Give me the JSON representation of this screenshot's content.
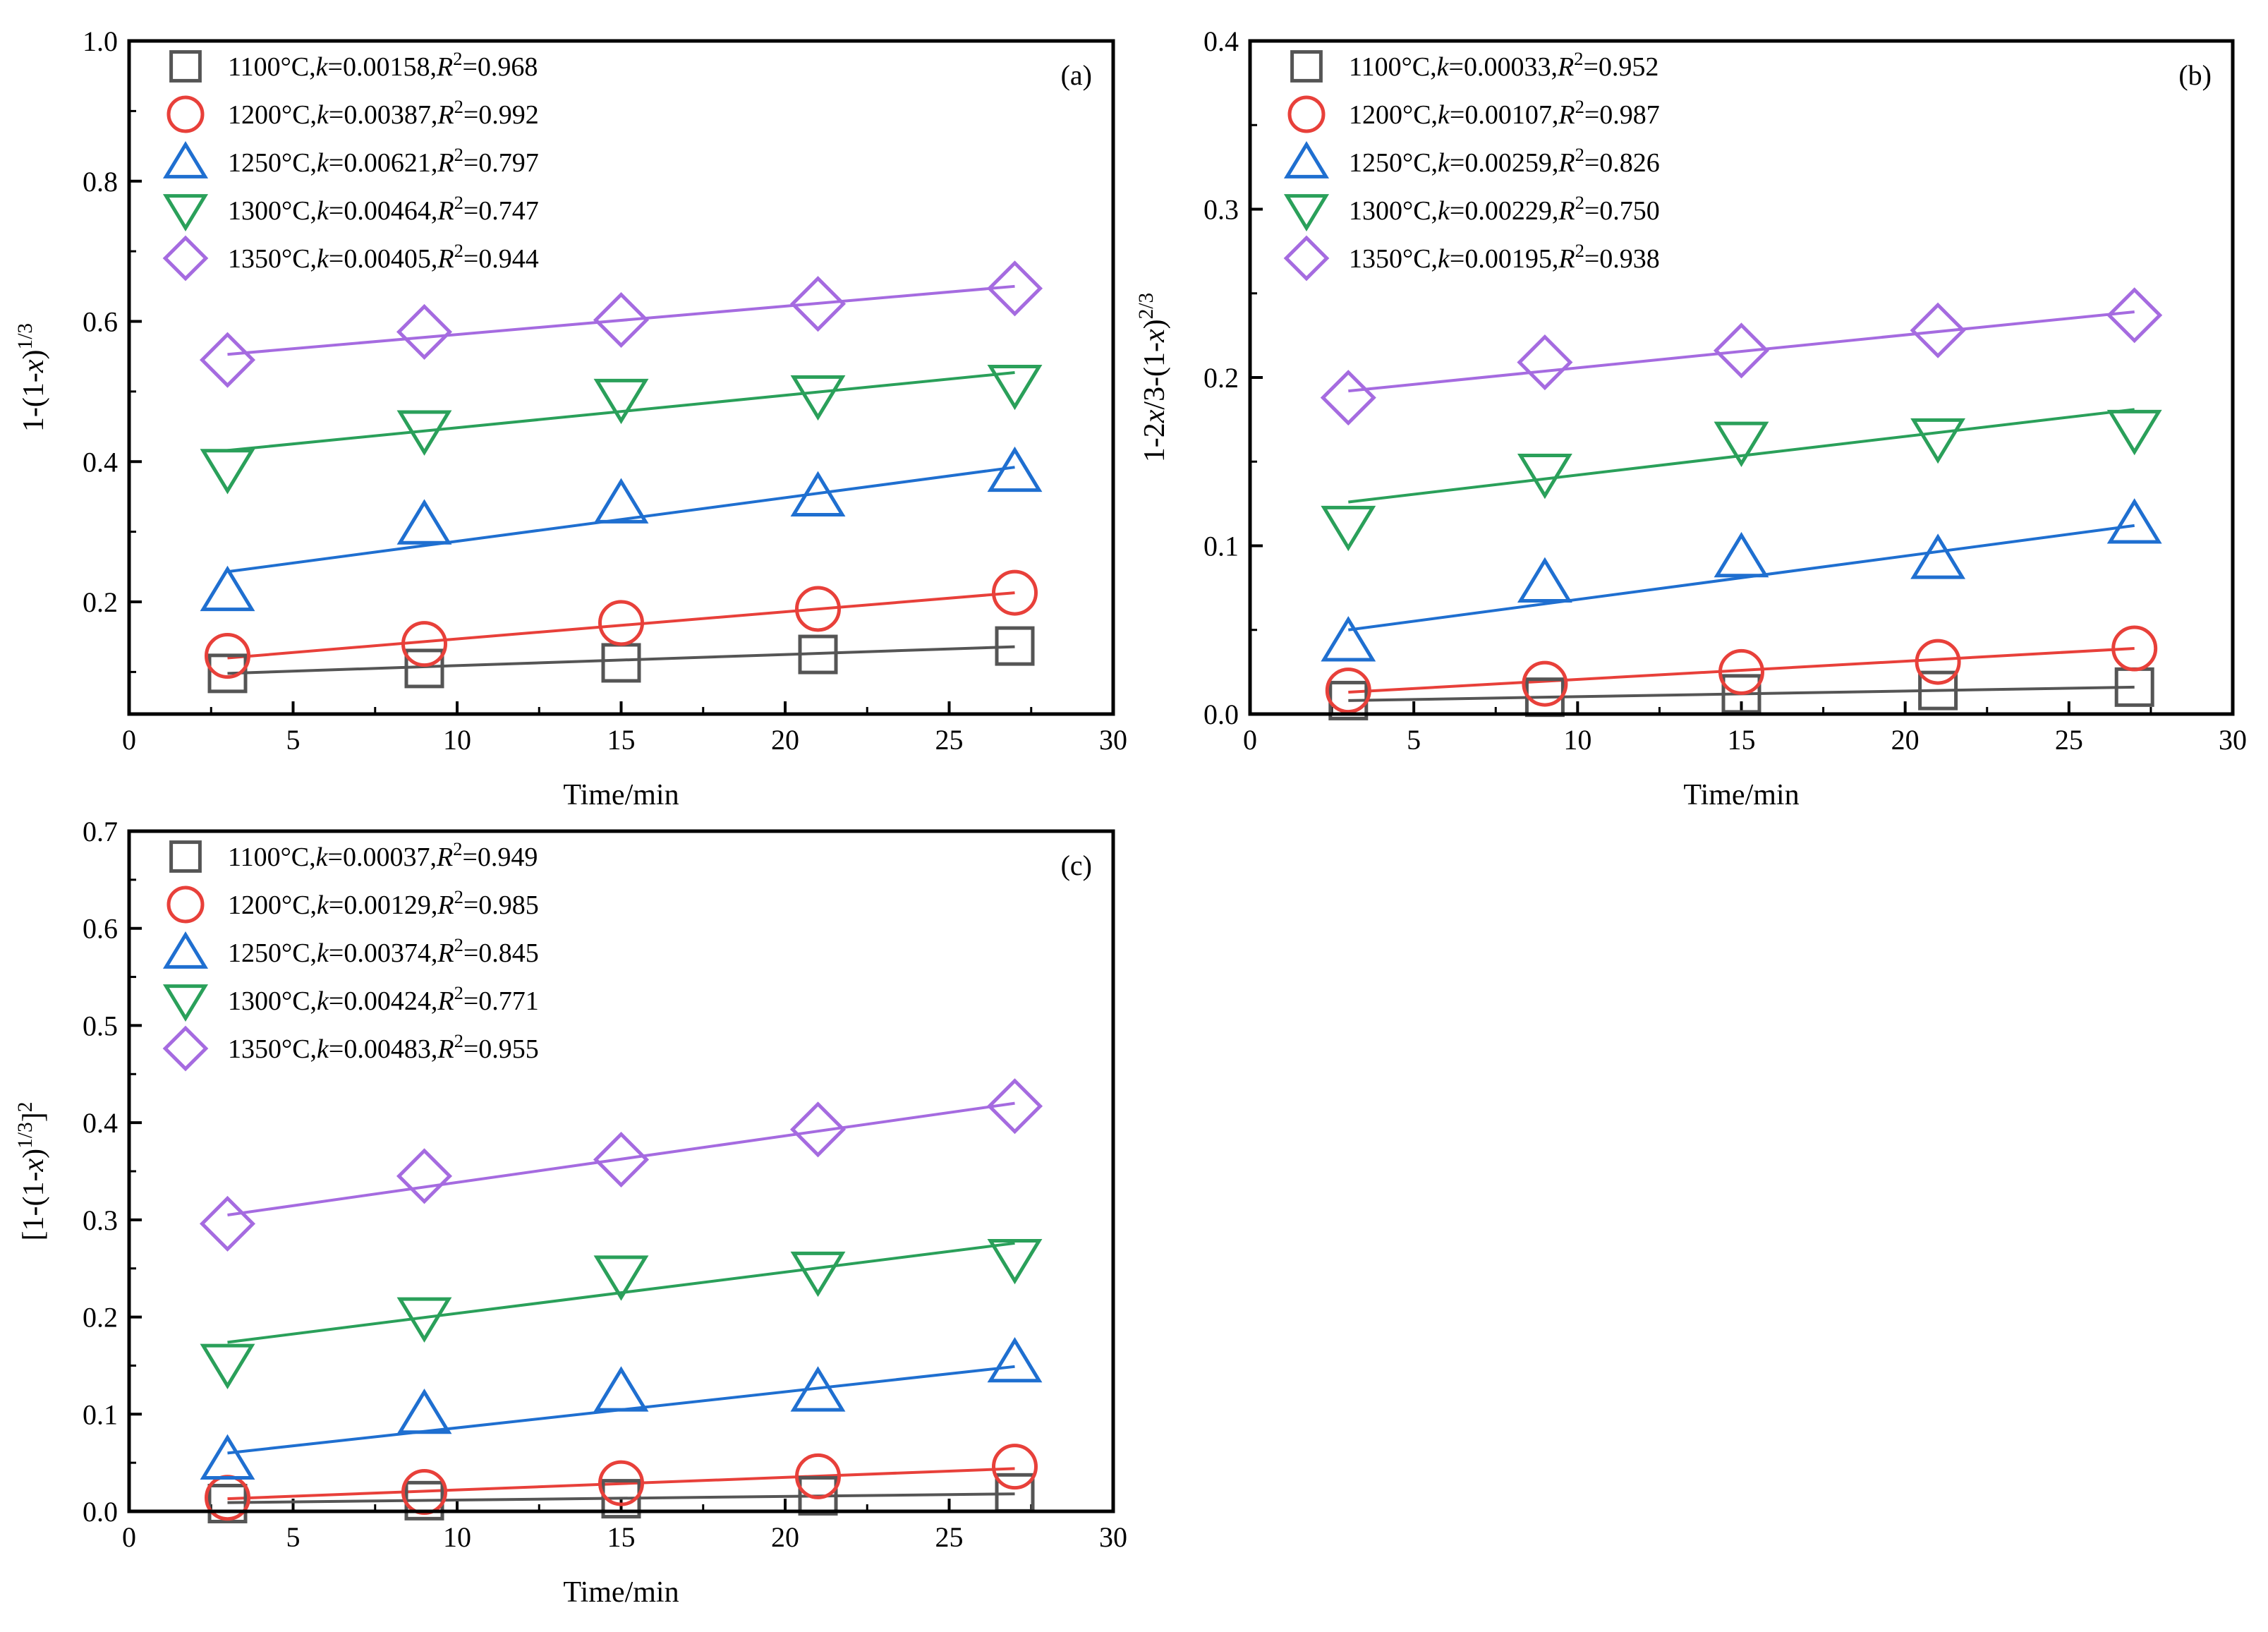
{
  "chart_data": [
    {
      "type": "scatter",
      "panel_label": "(a)",
      "xlabel": "Time/min",
      "ylabel": "1-(1-x)^1/3",
      "ylabel_parts": [
        "1-(1-",
        "x",
        ")",
        "1/3"
      ],
      "xlim": [
        0,
        30
      ],
      "ylim": [
        0.04,
        1.0
      ],
      "xticks": [
        0,
        5,
        10,
        15,
        20,
        25,
        30
      ],
      "yticks": [
        0.2,
        0.4,
        0.6,
        0.8,
        1.0
      ],
      "xtick_labels": [
        "0",
        "5",
        "10",
        "15",
        "20",
        "25",
        "30"
      ],
      "ytick_labels": [
        "0.2",
        "0.4",
        "0.6",
        "0.8",
        "1.0"
      ],
      "x": [
        3,
        9,
        15,
        21,
        27
      ],
      "series": [
        {
          "name": "1100°C",
          "temp": "1100°C",
          "k": "0.00158",
          "r2": "0.968",
          "marker": "square",
          "color": "#555555",
          "values": [
            0.098,
            0.105,
            0.113,
            0.125,
            0.137
          ],
          "fit": [
            0.098,
            0.136
          ]
        },
        {
          "name": "1200°C",
          "temp": "1200°C",
          "k": "0.00387",
          "r2": "0.992",
          "marker": "circle",
          "color": "#e8403a",
          "values": [
            0.123,
            0.14,
            0.17,
            0.19,
            0.213
          ],
          "fit": [
            0.12,
            0.213
          ]
        },
        {
          "name": "1250°C",
          "temp": "1250°C",
          "k": "0.00621",
          "r2": "0.797",
          "marker": "triangle-up",
          "color": "#1f6fd0",
          "values": [
            0.215,
            0.31,
            0.34,
            0.35,
            0.385
          ],
          "fit": [
            0.243,
            0.392
          ]
        },
        {
          "name": "1300°C",
          "temp": "1300°C",
          "k": "0.00464",
          "r2": "0.747",
          "marker": "triangle-down",
          "color": "#2aa05a",
          "values": [
            0.39,
            0.445,
            0.49,
            0.495,
            0.51
          ],
          "fit": [
            0.416,
            0.527
          ]
        },
        {
          "name": "1350°C",
          "temp": "1350°C",
          "k": "0.00405",
          "r2": "0.944",
          "marker": "diamond",
          "color": "#a56be0",
          "values": [
            0.545,
            0.585,
            0.602,
            0.625,
            0.647
          ],
          "fit": [
            0.553,
            0.65
          ]
        }
      ]
    },
    {
      "type": "scatter",
      "panel_label": "(b)",
      "xlabel": "Time/min",
      "ylabel": "1-2x/3-(1-x)^2/3",
      "ylabel_parts": [
        "1-2",
        "x",
        "/3-(1-",
        "x",
        ")",
        "2/3"
      ],
      "xlim": [
        0,
        30
      ],
      "ylim": [
        0.0,
        0.4
      ],
      "xticks": [
        0,
        5,
        10,
        15,
        20,
        25,
        30
      ],
      "yticks": [
        0.0,
        0.1,
        0.2,
        0.3,
        0.4
      ],
      "xtick_labels": [
        "0",
        "5",
        "10",
        "15",
        "20",
        "25",
        "30"
      ],
      "ytick_labels": [
        "0.0",
        "0.1",
        "0.2",
        "0.3",
        "0.4"
      ],
      "x": [
        3,
        9,
        15,
        21,
        27
      ],
      "series": [
        {
          "name": "1100°C",
          "temp": "1100°C",
          "k": "0.00033",
          "r2": "0.952",
          "marker": "square",
          "color": "#555555",
          "values": [
            0.008,
            0.01,
            0.012,
            0.014,
            0.016
          ],
          "fit": [
            0.008,
            0.016
          ]
        },
        {
          "name": "1200°C",
          "temp": "1200°C",
          "k": "0.00107",
          "r2": "0.987",
          "marker": "circle",
          "color": "#e8403a",
          "values": [
            0.014,
            0.018,
            0.025,
            0.031,
            0.039
          ],
          "fit": [
            0.013,
            0.039
          ]
        },
        {
          "name": "1250°C",
          "temp": "1250°C",
          "k": "0.00259",
          "r2": "0.826",
          "marker": "triangle-up",
          "color": "#1f6fd0",
          "values": [
            0.043,
            0.078,
            0.093,
            0.092,
            0.113
          ],
          "fit": [
            0.05,
            0.112
          ]
        },
        {
          "name": "1300°C",
          "temp": "1300°C",
          "k": "0.00229",
          "r2": "0.750",
          "marker": "triangle-down",
          "color": "#2aa05a",
          "values": [
            0.112,
            0.143,
            0.162,
            0.164,
            0.169
          ],
          "fit": [
            0.126,
            0.181
          ]
        },
        {
          "name": "1350°C",
          "temp": "1350°C",
          "k": "0.00195",
          "r2": "0.938",
          "marker": "diamond",
          "color": "#a56be0",
          "values": [
            0.188,
            0.209,
            0.216,
            0.228,
            0.237
          ],
          "fit": [
            0.192,
            0.239
          ]
        }
      ]
    },
    {
      "type": "scatter",
      "panel_label": "(c)",
      "xlabel": "Time/min",
      "ylabel": "[1-(1-x)^1/3]^2",
      "ylabel_parts": [
        "[1-(1-",
        "x",
        ")",
        "1/3",
        "]",
        "2"
      ],
      "xlim": [
        0,
        30
      ],
      "ylim": [
        0.0,
        0.7
      ],
      "xticks": [
        0,
        5,
        10,
        15,
        20,
        25,
        30
      ],
      "yticks": [
        0.0,
        0.1,
        0.2,
        0.3,
        0.4,
        0.5,
        0.6,
        0.7
      ],
      "xtick_labels": [
        "0",
        "5",
        "10",
        "15",
        "20",
        "25",
        "30"
      ],
      "ytick_labels": [
        "0.0",
        "0.1",
        "0.2",
        "0.3",
        "0.4",
        "0.5",
        "0.6",
        "0.7"
      ],
      "x": [
        3,
        9,
        15,
        21,
        27
      ],
      "series": [
        {
          "name": "1100°C",
          "temp": "1100°C",
          "k": "0.00037",
          "r2": "0.949",
          "marker": "square",
          "color": "#555555",
          "values": [
            0.008,
            0.011,
            0.013,
            0.016,
            0.019
          ],
          "fit": [
            0.009,
            0.018
          ]
        },
        {
          "name": "1200°C",
          "temp": "1200°C",
          "k": "0.00129",
          "r2": "0.985",
          "marker": "circle",
          "color": "#e8403a",
          "values": [
            0.014,
            0.02,
            0.029,
            0.036,
            0.046
          ],
          "fit": [
            0.013,
            0.044
          ]
        },
        {
          "name": "1250°C",
          "temp": "1250°C",
          "k": "0.00374",
          "r2": "0.845",
          "marker": "triangle-up",
          "color": "#1f6fd0",
          "values": [
            0.053,
            0.1,
            0.123,
            0.123,
            0.153
          ],
          "fit": [
            0.06,
            0.149
          ]
        },
        {
          "name": "1300°C",
          "temp": "1300°C",
          "k": "0.00424",
          "r2": "0.771",
          "marker": "triangle-down",
          "color": "#2aa05a",
          "values": [
            0.152,
            0.2,
            0.243,
            0.247,
            0.26
          ],
          "fit": [
            0.174,
            0.276
          ]
        },
        {
          "name": "1350°C",
          "temp": "1350°C",
          "k": "0.00483",
          "r2": "0.955",
          "marker": "diamond",
          "color": "#a56be0",
          "values": [
            0.296,
            0.345,
            0.362,
            0.393,
            0.417
          ],
          "fit": [
            0.305,
            0.42
          ]
        }
      ]
    }
  ]
}
